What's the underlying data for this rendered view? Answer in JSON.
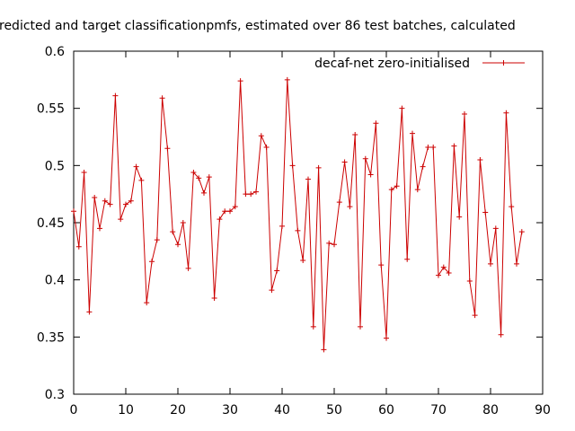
{
  "chart_data": {
    "type": "line",
    "title": "redicted and target classificationpmfs, estimated over 86 test batches, calculated",
    "xlabel": "",
    "ylabel": "",
    "xlim": [
      0,
      90
    ],
    "ylim": [
      0.3,
      0.6
    ],
    "xticks": [
      "0",
      "10",
      "20",
      "30",
      "40",
      "50",
      "60",
      "70",
      "80",
      "90"
    ],
    "yticks": [
      "0.3",
      "0.35",
      "0.4",
      "0.45",
      "0.5",
      "0.55",
      "0.6"
    ],
    "legend_position": "top-right",
    "series": [
      {
        "name": "decaf-net zero-initialised",
        "color": "#cc0000",
        "marker": "plus",
        "x": [
          0,
          1,
          2,
          3,
          4,
          5,
          6,
          7,
          8,
          9,
          10,
          11,
          12,
          13,
          14,
          15,
          16,
          17,
          18,
          19,
          20,
          21,
          22,
          23,
          24,
          25,
          26,
          27,
          28,
          29,
          30,
          31,
          32,
          33,
          34,
          35,
          36,
          37,
          38,
          39,
          40,
          41,
          42,
          43,
          44,
          45,
          46,
          47,
          48,
          49,
          50,
          51,
          52,
          53,
          54,
          55,
          56,
          57,
          58,
          59,
          60,
          61,
          62,
          63,
          64,
          65,
          66,
          67,
          68,
          69,
          70,
          71,
          72,
          73,
          74,
          75,
          76,
          77,
          78,
          79,
          80,
          81,
          82,
          83,
          84,
          85,
          86
        ],
        "values": [
          0.46,
          0.429,
          0.494,
          0.372,
          0.472,
          0.445,
          0.469,
          0.466,
          0.561,
          0.453,
          0.466,
          0.469,
          0.499,
          0.487,
          0.38,
          0.416,
          0.435,
          0.559,
          0.515,
          0.442,
          0.431,
          0.45,
          0.41,
          0.494,
          0.489,
          0.476,
          0.49,
          0.384,
          0.453,
          0.46,
          0.46,
          0.464,
          0.574,
          0.475,
          0.475,
          0.477,
          0.526,
          0.516,
          0.391,
          0.408,
          0.447,
          0.575,
          0.5,
          0.443,
          0.417,
          0.488,
          0.359,
          0.498,
          0.339,
          0.432,
          0.431,
          0.468,
          0.503,
          0.464,
          0.527,
          0.359,
          0.506,
          0.492,
          0.537,
          0.413,
          0.349,
          0.479,
          0.482,
          0.55,
          0.418,
          0.528,
          0.479,
          0.499,
          0.516,
          0.516,
          0.404,
          0.411,
          0.406,
          0.517,
          0.455,
          0.545,
          0.399,
          0.369,
          0.505,
          0.459,
          0.414,
          0.445,
          0.352,
          0.546,
          0.464,
          0.414,
          0.442
        ]
      }
    ]
  }
}
